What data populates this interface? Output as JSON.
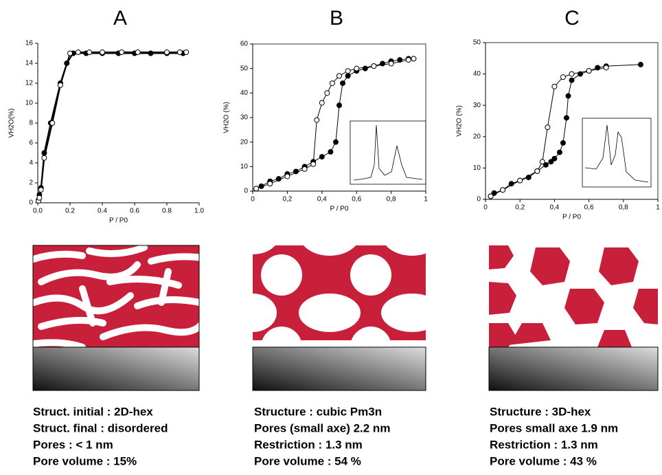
{
  "chart_data": [
    {
      "type": "line",
      "title": "A",
      "xlabel": "P / P0",
      "ylabel": "VH2O(%)",
      "xlim": [
        0,
        1
      ],
      "xticks": [
        {
          "value": 0,
          "label": "0.0"
        },
        {
          "value": 0.2,
          "label": "0.2"
        },
        {
          "value": 0.4,
          "label": "0.4"
        },
        {
          "value": 0.6,
          "label": "0.6"
        },
        {
          "value": 0.8,
          "label": "0.8"
        },
        {
          "value": 1,
          "label": "1.0"
        }
      ],
      "ylim": [
        0,
        16
      ],
      "yticks": [
        0,
        2,
        4,
        6,
        8,
        10,
        12,
        14,
        16
      ],
      "series": [
        {
          "color": "#000000",
          "marker_fill": "#000000",
          "x": [
            0.005,
            0.01,
            0.02,
            0.04,
            0.08,
            0.14,
            0.18,
            0.22,
            0.3,
            0.4,
            0.5,
            0.6,
            0.7,
            0.8,
            0.9
          ],
          "values": [
            0.3,
            0.8,
            1.5,
            5,
            8,
            12,
            14,
            15,
            15,
            15,
            15,
            15,
            15,
            15,
            15
          ]
        },
        {
          "color": "#000000",
          "marker_fill": "#ffffff",
          "x": [
            0.005,
            0.01,
            0.02,
            0.04,
            0.09,
            0.14,
            0.2,
            0.25,
            0.32,
            0.4,
            0.52,
            0.62,
            0.8,
            0.88,
            0.92
          ],
          "values": [
            0.2,
            0.5,
            1.3,
            4.5,
            8,
            11.8,
            15,
            15.1,
            15.1,
            15.1,
            15.1,
            15.1,
            15.1,
            15.1,
            15.1
          ]
        }
      ]
    },
    {
      "type": "line",
      "title": "B",
      "xlabel": "P / P0",
      "ylabel": "VH2O (%)",
      "xlim": [
        0,
        1
      ],
      "xticks": [
        0,
        {
          "value": 0.2,
          "label": "0,2"
        },
        {
          "value": 0.4,
          "label": "0,4"
        },
        {
          "value": 0.6,
          "label": "0,6"
        },
        {
          "value": 0.8,
          "label": "0,8"
        },
        1
      ],
      "ylim": [
        0,
        60
      ],
      "yticks": [
        0,
        10,
        20,
        30,
        40,
        50,
        60
      ],
      "series": [
        {
          "color": "#000000",
          "marker_fill": "#000000",
          "x": [
            0.02,
            0.05,
            0.1,
            0.15,
            0.2,
            0.25,
            0.3,
            0.35,
            0.4,
            0.45,
            0.48,
            0.5,
            0.52,
            0.55,
            0.6,
            0.65,
            0.7,
            0.75,
            0.8,
            0.85,
            0.9,
            0.93
          ],
          "values": [
            1,
            2,
            4,
            5,
            7,
            8,
            10,
            12,
            14,
            16,
            20,
            35,
            44,
            47,
            49,
            50,
            51,
            52,
            53,
            53.5,
            54,
            54
          ]
        },
        {
          "color": "#000000",
          "marker_fill": "#ffffff",
          "x": [
            0.02,
            0.1,
            0.2,
            0.3,
            0.35,
            0.37,
            0.4,
            0.43,
            0.46,
            0.5,
            0.55,
            0.6,
            0.7,
            0.8,
            0.9,
            0.93
          ],
          "values": [
            1,
            3,
            6,
            9,
            11,
            29,
            36,
            40,
            44,
            47,
            49,
            50,
            51,
            52,
            53.5,
            54
          ]
        }
      ]
    },
    {
      "type": "line",
      "title": "C",
      "xlabel": "P / P0",
      "ylabel": "VH2O (%)",
      "xlim": [
        0,
        1
      ],
      "xticks": [
        0,
        {
          "value": 0.2,
          "label": "0,2"
        },
        {
          "value": 0.4,
          "label": "0,4"
        },
        {
          "value": 0.6,
          "label": "0,6"
        },
        {
          "value": 0.8,
          "label": "0,8"
        },
        1
      ],
      "ylim": [
        0,
        50
      ],
      "yticks": [
        0,
        10,
        20,
        30,
        40,
        50
      ],
      "series": [
        {
          "color": "#000000",
          "marker_fill": "#000000",
          "x": [
            0.03,
            0.05,
            0.1,
            0.15,
            0.2,
            0.25,
            0.3,
            0.35,
            0.38,
            0.4,
            0.43,
            0.45,
            0.47,
            0.48,
            0.5,
            0.55,
            0.6,
            0.65,
            0.7,
            0.9
          ],
          "values": [
            1,
            2,
            3,
            5,
            6,
            7,
            9,
            11,
            12,
            13,
            15,
            18,
            26,
            33,
            38,
            40,
            41,
            42,
            42.5,
            43
          ]
        },
        {
          "color": "#000000",
          "marker_fill": "#ffffff",
          "x": [
            0.03,
            0.1,
            0.2,
            0.3,
            0.33,
            0.36,
            0.4,
            0.45,
            0.5,
            0.6,
            0.7
          ],
          "values": [
            1,
            3,
            6,
            9,
            12,
            23,
            36,
            39,
            40,
            41,
            42
          ]
        }
      ]
    }
  ],
  "captions": [
    [
      "Struct. initial : 2D-hex",
      "Struct. final : disordered",
      "Pores : < 1 nm",
      "Pore volume : 15%"
    ],
    [
      "Structure : cubic Pm3n",
      "Pores (small axe) 2.2 nm",
      "Restriction : 1.3 nm",
      "Pore volume : 54 %"
    ],
    [
      "Structure : 3D-hex",
      "Pores small axe 1.9 nm",
      "Restriction : 1.3 nm",
      "Pore volume : 43 %"
    ]
  ]
}
